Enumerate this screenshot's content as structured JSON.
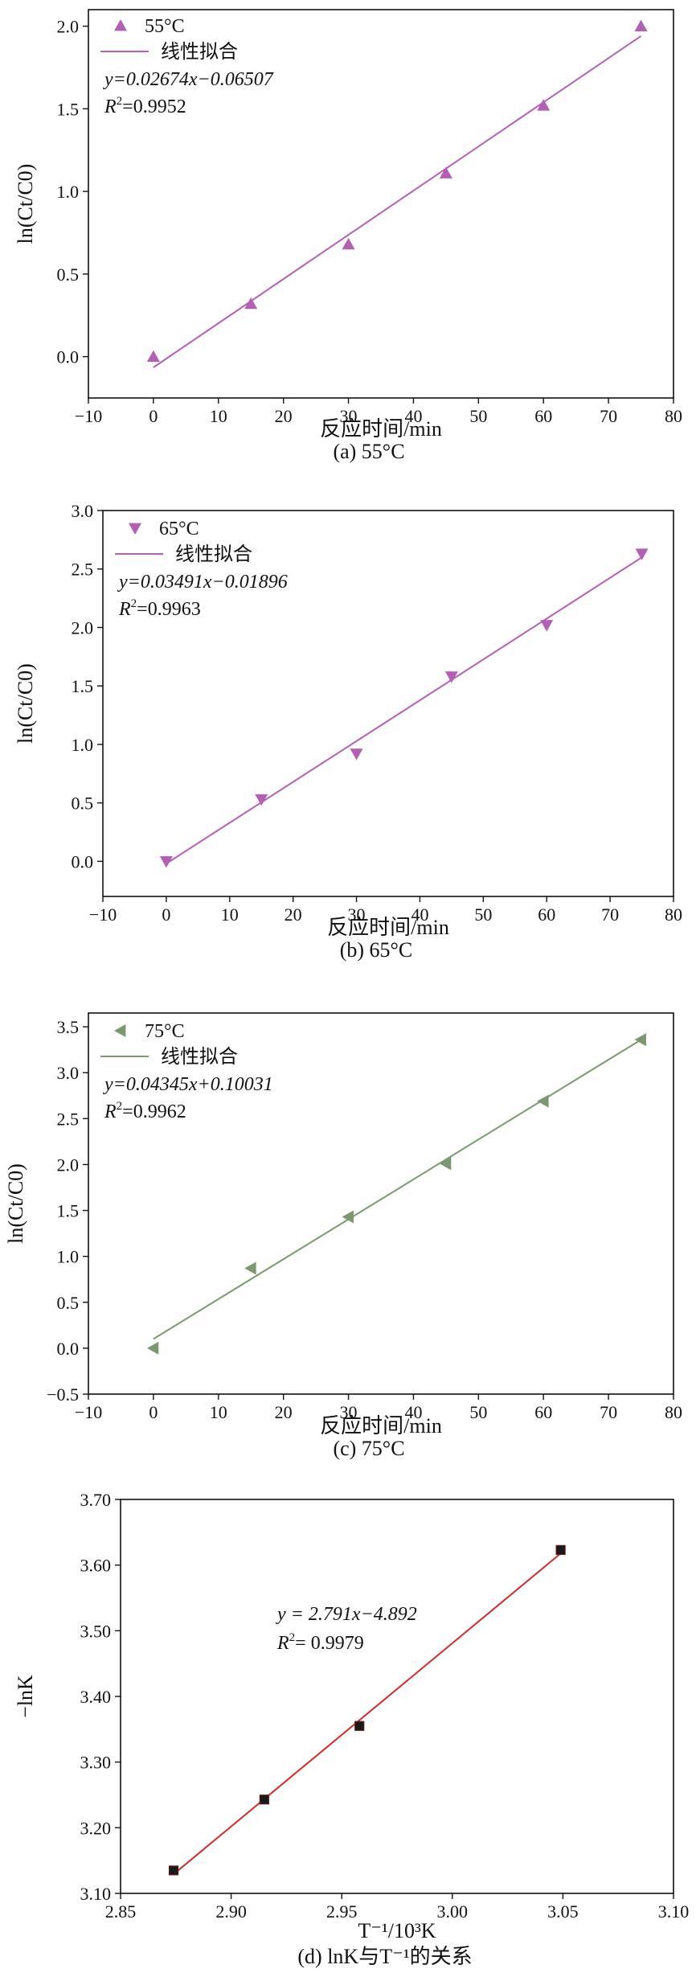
{
  "chart_data": [
    {
      "type": "scatter",
      "caption": "(a) 55°C",
      "xlabel": "反应时间/min",
      "ylabel": "ln(Ct/C0)",
      "xlim": [
        -10,
        80
      ],
      "ylim": [
        -0.25,
        2.1
      ],
      "xticks": [
        -10,
        0,
        10,
        20,
        30,
        40,
        50,
        60,
        70,
        80
      ],
      "yticks": [
        0.0,
        0.5,
        1.0,
        1.5,
        2.0
      ],
      "ytick_labels": [
        "0.0",
        "0.5",
        "1.0",
        "1.5",
        "2.0"
      ],
      "marker": "triangle-up",
      "color": "#b45fb6",
      "series": [
        {
          "name": "55°C",
          "x": [
            0,
            15,
            30,
            45,
            60,
            75
          ],
          "y": [
            0.0,
            0.32,
            0.68,
            1.11,
            1.52,
            2.0
          ]
        }
      ],
      "fit": {
        "name": "线性拟合",
        "slope": 0.02674,
        "intercept": -0.06507,
        "x_range": [
          0,
          75
        ]
      },
      "equation": "y=0.02674x−0.06507",
      "r2_label": "R",
      "r2_value": "=0.9952"
    },
    {
      "type": "scatter",
      "caption": "(b) 65°C",
      "xlabel": "反应时间/min",
      "ylabel": "ln(Ct/C0)",
      "xlim": [
        -10,
        80
      ],
      "ylim": [
        -0.3,
        3.0
      ],
      "xticks": [
        -10,
        0,
        10,
        20,
        30,
        40,
        50,
        60,
        70,
        80
      ],
      "yticks": [
        0.0,
        0.5,
        1.0,
        1.5,
        2.0,
        2.5,
        3.0
      ],
      "ytick_labels": [
        "0.0",
        "0.5",
        "1.0",
        "1.5",
        "2.0",
        "2.5",
        "3.0"
      ],
      "marker": "triangle-down",
      "color": "#b45fb6",
      "series": [
        {
          "name": "65°C",
          "x": [
            0,
            15,
            30,
            45,
            60,
            75
          ],
          "y": [
            0.0,
            0.53,
            0.92,
            1.58,
            2.02,
            2.63
          ]
        }
      ],
      "fit": {
        "name": "线性拟合",
        "slope": 0.03491,
        "intercept": -0.01896,
        "x_range": [
          0,
          75
        ]
      },
      "equation": "y=0.03491x−0.01896",
      "r2_label": "R",
      "r2_value": "=0.9963"
    },
    {
      "type": "scatter",
      "caption": "(c) 75°C",
      "xlabel": "反应时间/min",
      "ylabel": "ln(Ct/C0)",
      "xlim": [
        -10,
        80
      ],
      "ylim": [
        -0.5,
        3.65
      ],
      "xticks": [
        -10,
        0,
        10,
        20,
        30,
        40,
        50,
        60,
        70,
        80
      ],
      "yticks": [
        -0.5,
        0.0,
        0.5,
        1.0,
        1.5,
        2.0,
        2.5,
        3.0,
        3.5
      ],
      "ytick_labels": [
        "−0.5",
        "0.0",
        "0.5",
        "1.0",
        "1.5",
        "2.0",
        "2.5",
        "3.0",
        "3.5"
      ],
      "marker": "triangle-left",
      "color": "#7a9a6e",
      "series": [
        {
          "name": "75°C",
          "x": [
            0,
            15,
            30,
            45,
            60,
            75
          ],
          "y": [
            0.0,
            0.87,
            1.43,
            2.01,
            2.69,
            3.36
          ]
        }
      ],
      "fit": {
        "name": "线性拟合",
        "slope": 0.04345,
        "intercept": 0.10031,
        "x_range": [
          0,
          75
        ]
      },
      "equation": "y=0.04345x+0.10031",
      "r2_label": "R",
      "r2_value": "=0.9962"
    },
    {
      "type": "scatter",
      "caption": "(d) lnK与T⁻¹的关系",
      "xlabel": "T⁻¹/10³K",
      "ylabel": "−lnK",
      "xlim": [
        2.85,
        3.1
      ],
      "ylim": [
        3.1,
        3.7
      ],
      "xticks": [
        2.85,
        2.9,
        2.95,
        3.0,
        3.05,
        3.1
      ],
      "xtick_labels": [
        "2.85",
        "2.90",
        "2.95",
        "3.00",
        "3.05",
        "3.10"
      ],
      "yticks": [
        3.1,
        3.2,
        3.3,
        3.4,
        3.5,
        3.6,
        3.7
      ],
      "ytick_labels": [
        "3.10",
        "3.20",
        "3.30",
        "3.40",
        "3.50",
        "3.60",
        "3.70"
      ],
      "marker": "square",
      "color": "#1a1a1a",
      "line_color": "#d12a2a",
      "series": [
        {
          "x": [
            2.874,
            2.915,
            2.958,
            3.049
          ],
          "y": [
            3.135,
            3.243,
            3.355,
            3.623
          ]
        }
      ],
      "fit": {
        "slope": 2.791,
        "intercept": -4.892,
        "x_range": [
          2.874,
          3.049
        ]
      },
      "equation": "y = 2.791x−4.892",
      "r2_label": "R",
      "r2_value": "= 0.9979"
    }
  ]
}
